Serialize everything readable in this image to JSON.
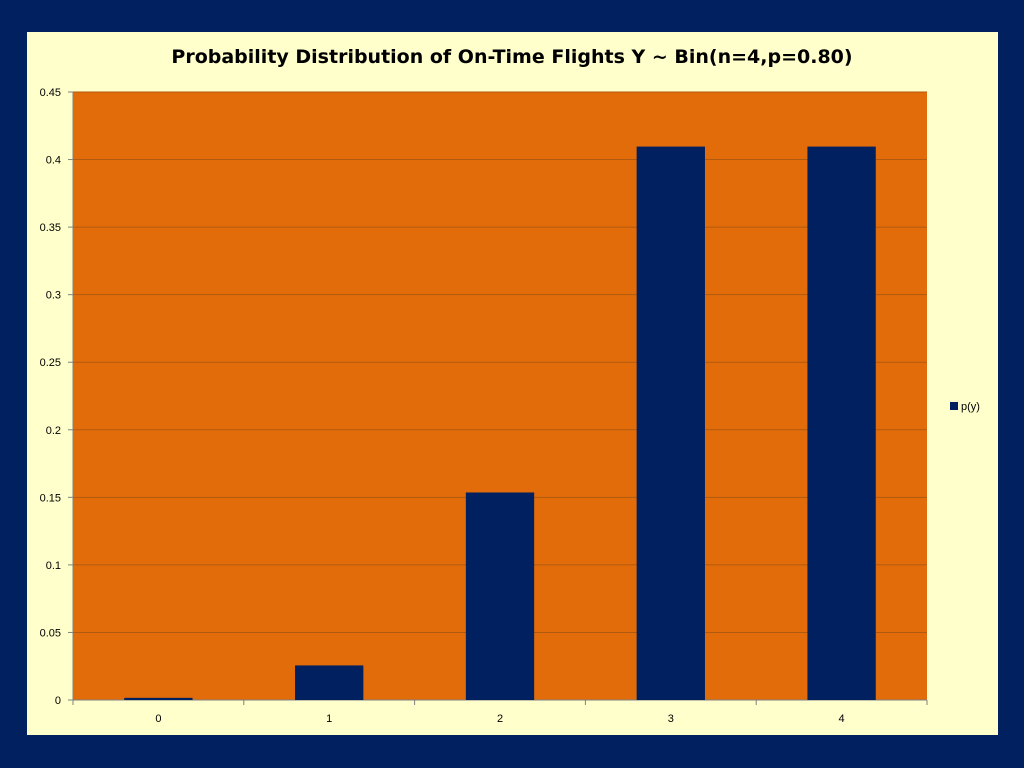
{
  "colors": {
    "page_background": "#002060",
    "panel_background": "#ffffcc",
    "plot_area": "#e36c0a",
    "bar_fill": "#002060",
    "gridline": "#b05a10"
  },
  "chart_data": {
    "type": "bar",
    "title": "Probability Distribution of On-Time Flights Y ~ Bin(n=4,p=0.80)",
    "xlabel": "",
    "ylabel": "",
    "categories": [
      "0",
      "1",
      "2",
      "3",
      "4"
    ],
    "series": [
      {
        "name": "p(y)",
        "values": [
          0.0016,
          0.0256,
          0.1536,
          0.4096,
          0.4096
        ]
      }
    ],
    "ylim": [
      0,
      0.45
    ],
    "yticks": [
      "0",
      "0.05",
      "0.1",
      "0.15",
      "0.2",
      "0.25",
      "0.3",
      "0.35",
      "0.4",
      "0.45"
    ],
    "grid": true,
    "legend": "right"
  }
}
